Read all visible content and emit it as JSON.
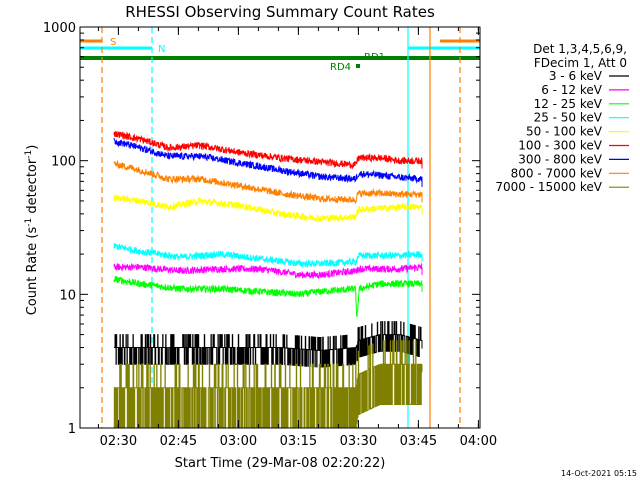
{
  "chart_data": {
    "type": "line",
    "title": "RHESSI Observing Summary Count Rates",
    "xlabel": "Start Time (29-Mar-08 02:20:22)",
    "ylabel_main": "Count Rate (s",
    "ylabel_sup1": "-1",
    "ylabel_mid": " detector",
    "ylabel_sup2": "-1",
    "ylabel_end": ")",
    "x_unit": "minutes after 02:20:22",
    "xlim": [
      0,
      100
    ],
    "ylim": [
      1,
      1000
    ],
    "yscale": "log",
    "x_ticks": [
      {
        "value": 9.6,
        "label": "02:30"
      },
      {
        "value": 24.6,
        "label": "02:45"
      },
      {
        "value": 39.6,
        "label": "03:00"
      },
      {
        "value": 54.6,
        "label": "03:15"
      },
      {
        "value": 69.6,
        "label": "03:30"
      },
      {
        "value": 84.6,
        "label": "03:45"
      },
      {
        "value": 99.6,
        "label": "04:00"
      }
    ],
    "y_ticks": [
      {
        "value": 1,
        "label": "1"
      },
      {
        "value": 10,
        "label": "10"
      },
      {
        "value": 100,
        "label": "100"
      },
      {
        "value": 1000,
        "label": "1000"
      }
    ],
    "legend_header": [
      "Det 1,3,4,5,6,9,",
      "FDecim 1, Att 0"
    ],
    "series": [
      {
        "name": "3 - 6 keV",
        "color": "#000000",
        "t": [
          8.5,
          20,
          30,
          40,
          50,
          60,
          69,
          69.5,
          75,
          80,
          85.5
        ],
        "v": [
          4.0,
          4.0,
          4.0,
          4.0,
          4.0,
          3.8,
          4.0,
          4.5,
          5.0,
          5.0,
          4.5
        ]
      },
      {
        "name": "6 - 12 keV",
        "color": "#ff00ff",
        "t": [
          8.5,
          15,
          25,
          35,
          45,
          55,
          60,
          69,
          69.6,
          75,
          80,
          85.5
        ],
        "v": [
          16,
          16,
          15,
          15.5,
          15.5,
          14,
          14,
          15,
          15.5,
          15.5,
          15.5,
          16
        ]
      },
      {
        "name": "12 - 25 keV",
        "color": "#00ff00",
        "t": [
          8.5,
          15,
          25,
          35,
          45,
          55,
          60,
          68.9,
          69.2,
          69.8,
          75,
          80,
          85.5
        ],
        "v": [
          13,
          12,
          11,
          11,
          10.5,
          10,
          10.5,
          11,
          6,
          11,
          12,
          12,
          12
        ]
      },
      {
        "name": "25 - 50 keV",
        "color": "#00ffff",
        "t": [
          8.5,
          15,
          25,
          35,
          45,
          55,
          60,
          68.9,
          69.6,
          75,
          80,
          85.5
        ],
        "v": [
          23,
          21,
          19,
          20,
          18.5,
          17,
          17,
          17.5,
          19.5,
          19.5,
          19.5,
          20
        ]
      },
      {
        "name": "50 - 100 keV",
        "color": "#ffff00",
        "t": [
          8.5,
          15,
          22,
          30,
          40,
          50,
          60,
          68.9,
          69.6,
          75,
          80,
          85.5
        ],
        "v": [
          53,
          50,
          45,
          50,
          46,
          40,
          37,
          38,
          43,
          44,
          45,
          45
        ]
      },
      {
        "name": "100 - 300 keV",
        "color": "#ff0000",
        "t": [
          8.5,
          15,
          22,
          30,
          40,
          50,
          60,
          68.9,
          69.6,
          75,
          80,
          85.5
        ],
        "v": [
          160,
          145,
          125,
          130,
          115,
          105,
          98,
          93,
          105,
          105,
          100,
          100
        ]
      },
      {
        "name": "300 - 800 keV",
        "color": "#0000ff",
        "t": [
          8.5,
          15,
          22,
          30,
          40,
          50,
          60,
          68.9,
          69.6,
          75,
          80,
          85.5
        ],
        "v": [
          140,
          125,
          108,
          108,
          96,
          85,
          76,
          73,
          80,
          78,
          75,
          73
        ]
      },
      {
        "name": "800 - 7000 keV",
        "color": "#ff8000",
        "t": [
          8.5,
          15,
          22,
          30,
          40,
          50,
          60,
          68.9,
          69.6,
          75,
          80,
          85.5
        ],
        "v": [
          95,
          85,
          73,
          73,
          65,
          57,
          52,
          51,
          57,
          57,
          56,
          56
        ]
      },
      {
        "name": "7000 - 15000 keV",
        "color": "#808000",
        "t": [
          8.5,
          20,
          30,
          40,
          50,
          60,
          69,
          69.5,
          75,
          80,
          85.5
        ],
        "v": [
          2.0,
          2.0,
          2.0,
          2.0,
          2.0,
          2.0,
          2.0,
          2.5,
          3.0,
          3.0,
          3.0
        ]
      }
    ],
    "flags": [
      {
        "label": "S",
        "color": "#ff8000",
        "t0": 0,
        "t1": 5.5,
        "label_at": 7.5
      },
      {
        "label": "N",
        "color": "#00ffff",
        "t0": 0,
        "t1": 18,
        "label_at": 19.5
      },
      {
        "label": "RD1",
        "color": "#008000",
        "t0": 0,
        "t1": 100,
        "label_at": 71
      },
      {
        "label": "RD4",
        "color": "#008000",
        "t0": 69,
        "t1": 70,
        "label_at": 62.5
      },
      {
        "label": "",
        "color": "#00ffff",
        "t0": 82,
        "t1": 100,
        "label_at": null
      },
      {
        "label": "",
        "color": "#ff8000",
        "t0": 90,
        "t1": 100,
        "label_at": null
      }
    ],
    "markers": [
      {
        "t": 5.5,
        "color": "#ff8000",
        "dashed": true
      },
      {
        "t": 18,
        "color": "#00ffff",
        "dashed": true
      },
      {
        "t": 82,
        "color": "#00ffff",
        "dashed": false
      },
      {
        "t": 87.5,
        "color": "#ff8000",
        "dashed": false
      },
      {
        "t": 95,
        "color": "#ff8000",
        "dashed": true
      }
    ],
    "grid": false,
    "legend_position": "right"
  },
  "footer": {
    "date": "14-Oct-2021 05:15"
  }
}
